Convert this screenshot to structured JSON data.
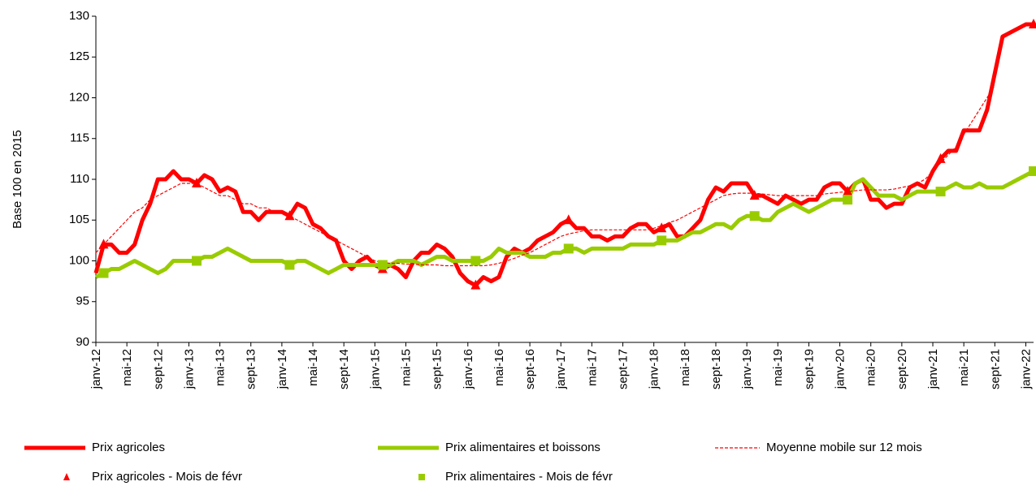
{
  "chart_data": {
    "type": "line",
    "y_label": "Base 100 en 2015",
    "categories": [
      "janv-12",
      null,
      null,
      null,
      "mai-12",
      null,
      null,
      null,
      "sept-12",
      null,
      null,
      null,
      "janv-13",
      null,
      null,
      null,
      "mai-13",
      null,
      null,
      null,
      "sept-13",
      null,
      null,
      null,
      "janv-14",
      null,
      null,
      null,
      "mai-14",
      null,
      null,
      null,
      "sept-14",
      null,
      null,
      null,
      "janv-15",
      null,
      null,
      null,
      "mai-15",
      null,
      null,
      null,
      "sept-15",
      null,
      null,
      null,
      "janv-16",
      null,
      null,
      null,
      "mai-16",
      null,
      null,
      null,
      "sept-16",
      null,
      null,
      null,
      "janv-17",
      null,
      null,
      null,
      "mai-17",
      null,
      null,
      null,
      "sept-17",
      null,
      null,
      null,
      "janv-18",
      null,
      null,
      null,
      "mai-18",
      null,
      null,
      null,
      "sept-18",
      null,
      null,
      null,
      "janv-19",
      null,
      null,
      null,
      "mai-19",
      null,
      null,
      null,
      "sept-19",
      null,
      null,
      null,
      "janv-20",
      null,
      null,
      null,
      "mai-20",
      null,
      null,
      null,
      "sept-20",
      null,
      null,
      null,
      "janv-21",
      null,
      null,
      null,
      "mai-21",
      null,
      null,
      null,
      "sept-21",
      null,
      null,
      null,
      "janv-22",
      null
    ],
    "series": [
      {
        "name": "Prix agricoles",
        "color": "#ff0000",
        "style": "thick",
        "values": [
          98.5,
          102,
          102,
          101,
          101,
          102,
          105,
          107,
          110,
          110,
          111,
          110,
          110,
          109.5,
          110.5,
          110,
          108.5,
          109,
          108.5,
          106,
          106,
          105,
          106,
          106,
          106,
          105.5,
          107,
          106.5,
          104.5,
          104,
          103,
          102.5,
          100,
          99,
          100,
          100.5,
          99.5,
          99,
          99.5,
          99,
          98,
          100,
          101,
          101,
          102,
          101.5,
          100.5,
          98.5,
          97.5,
          97,
          98,
          97.5,
          98,
          100.5,
          101.5,
          101,
          101.5,
          102.5,
          103,
          103.5,
          104.5,
          105,
          104,
          104,
          103,
          103,
          102.5,
          103,
          103,
          104,
          104.5,
          104.5,
          103.5,
          104,
          104.5,
          103,
          103,
          104,
          105,
          107.5,
          109,
          108.5,
          109.5,
          109.5,
          109.5,
          108,
          108,
          107.5,
          107,
          108,
          107.5,
          107,
          107.5,
          107.5,
          109,
          109.5,
          109.5,
          108.5,
          109.5,
          110,
          107.5,
          107.5,
          106.5,
          107,
          107,
          109,
          109.5,
          109,
          111,
          112.5,
          113.5,
          113.5,
          116,
          116,
          116,
          118.5,
          123,
          127.5,
          128,
          128.5,
          129,
          129
        ]
      },
      {
        "name": "Prix alimentaires et boissons",
        "color": "#99cc00",
        "style": "thick",
        "values": [
          98,
          98.5,
          99,
          99,
          99.5,
          100,
          99.5,
          99,
          98.5,
          99,
          100,
          100,
          100,
          100,
          100.5,
          100.5,
          101,
          101.5,
          101,
          100.5,
          100,
          100,
          100,
          100,
          100,
          99.5,
          100,
          100,
          99.5,
          99,
          98.5,
          99,
          99.5,
          99.5,
          99.5,
          99.5,
          99.5,
          99.5,
          99.5,
          100,
          100,
          100,
          99.5,
          100,
          100.5,
          100.5,
          100,
          100,
          100,
          100,
          100,
          100.5,
          101.5,
          101,
          101,
          101,
          100.5,
          100.5,
          100.5,
          101,
          101,
          101.5,
          101.5,
          101,
          101.5,
          101.5,
          101.5,
          101.5,
          101.5,
          102,
          102,
          102,
          102,
          102.5,
          102.5,
          102.5,
          103,
          103.5,
          103.5,
          104,
          104.5,
          104.5,
          104,
          105,
          105.5,
          105.5,
          105,
          105,
          106,
          106.5,
          107,
          106.5,
          106,
          106.5,
          107,
          107.5,
          107.5,
          107.5,
          109.5,
          110,
          109,
          108,
          108,
          108,
          107.5,
          108,
          108.5,
          108.5,
          108.5,
          108.5,
          109,
          109.5,
          109,
          109,
          109.5,
          109,
          109,
          109,
          109.5,
          110,
          110.5,
          111
        ]
      },
      {
        "name": "Moyenne mobile sur 12 mois",
        "color": "#ff0000",
        "style": "dashed",
        "values": [
          101,
          102,
          103,
          104,
          105,
          106,
          106.5,
          107.5,
          108,
          108.5,
          109,
          109.5,
          109.5,
          109.5,
          109,
          108.5,
          108,
          108,
          107.5,
          107,
          107,
          106.5,
          106.5,
          106,
          106,
          105.5,
          105,
          104.5,
          104,
          103.5,
          103,
          102.5,
          102,
          101.5,
          101,
          100.5,
          100,
          99.8,
          99.7,
          99.7,
          99.6,
          99.6,
          99.5,
          99.5,
          99.5,
          99.4,
          99.4,
          99.4,
          99.4,
          99.4,
          99.4,
          99.5,
          99.7,
          100,
          100.3,
          100.7,
          101,
          101.5,
          102,
          102.5,
          103,
          103.3,
          103.5,
          103.7,
          103.8,
          103.8,
          103.8,
          103.8,
          103.8,
          103.8,
          103.8,
          103.8,
          104,
          104.3,
          104.7,
          105,
          105.5,
          106,
          106.5,
          107,
          107.5,
          108,
          108.2,
          108.3,
          108.3,
          108.3,
          108.2,
          108.1,
          108,
          108,
          108,
          108,
          108,
          108,
          108.2,
          108.3,
          108.4,
          108.5,
          108.6,
          108.7,
          108.7,
          108.7,
          108.7,
          108.8,
          109,
          109.2,
          109.5,
          110,
          111,
          112,
          113,
          114,
          115.5,
          117,
          118.5,
          120,
          121.5,
          null,
          null,
          null,
          null,
          null
        ]
      },
      {
        "name": "Prix agricoles - Mois de févr",
        "color": "#ff0000",
        "style": "triangle",
        "values": [
          null,
          102,
          null,
          null,
          null,
          null,
          null,
          null,
          null,
          null,
          null,
          null,
          null,
          109.5,
          null,
          null,
          null,
          null,
          null,
          null,
          null,
          null,
          null,
          null,
          null,
          105.5,
          null,
          null,
          null,
          null,
          null,
          null,
          null,
          null,
          null,
          null,
          null,
          99,
          null,
          null,
          null,
          null,
          null,
          null,
          null,
          null,
          null,
          null,
          null,
          97,
          null,
          null,
          null,
          null,
          null,
          null,
          null,
          null,
          null,
          null,
          null,
          105,
          null,
          null,
          null,
          null,
          null,
          null,
          null,
          null,
          null,
          null,
          null,
          104,
          null,
          null,
          null,
          null,
          null,
          null,
          null,
          null,
          null,
          null,
          null,
          108,
          null,
          null,
          null,
          null,
          null,
          null,
          null,
          null,
          null,
          null,
          null,
          108.5,
          null,
          null,
          null,
          null,
          null,
          null,
          null,
          null,
          null,
          null,
          null,
          112.5,
          null,
          null,
          null,
          null,
          null,
          null,
          null,
          null,
          null,
          null,
          null,
          129
        ]
      },
      {
        "name": "Prix alimentaires - Mois de févr",
        "color": "#99cc00",
        "style": "square",
        "values": [
          null,
          98.5,
          null,
          null,
          null,
          null,
          null,
          null,
          null,
          null,
          null,
          null,
          null,
          100,
          null,
          null,
          null,
          null,
          null,
          null,
          null,
          null,
          null,
          null,
          null,
          99.5,
          null,
          null,
          null,
          null,
          null,
          null,
          null,
          null,
          null,
          null,
          null,
          99.5,
          null,
          null,
          null,
          null,
          null,
          null,
          null,
          null,
          null,
          null,
          null,
          100,
          null,
          null,
          null,
          null,
          null,
          null,
          null,
          null,
          null,
          null,
          null,
          101.5,
          null,
          null,
          null,
          null,
          null,
          null,
          null,
          null,
          null,
          null,
          null,
          102.5,
          null,
          null,
          null,
          null,
          null,
          null,
          null,
          null,
          null,
          null,
          null,
          105.5,
          null,
          null,
          null,
          null,
          null,
          null,
          null,
          null,
          null,
          null,
          null,
          107.5,
          null,
          null,
          null,
          null,
          null,
          null,
          null,
          null,
          null,
          null,
          null,
          108.5,
          null,
          null,
          null,
          null,
          null,
          null,
          null,
          null,
          null,
          null,
          null,
          111
        ]
      }
    ],
    "ylim": [
      90,
      130
    ],
    "yticks": [
      90,
      95,
      100,
      105,
      110,
      115,
      120,
      125,
      130
    ],
    "grid": false
  }
}
